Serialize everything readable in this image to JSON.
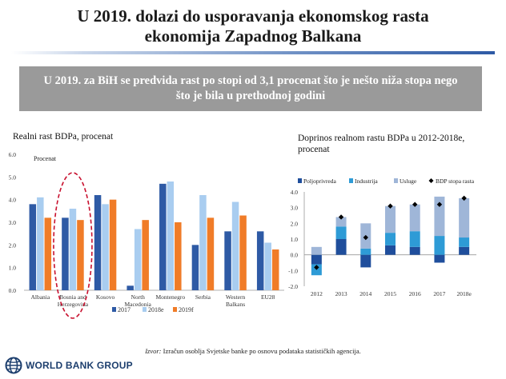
{
  "slide": {
    "title_line1": "U 2019. dolazi do usporavanja ekonomskog rasta",
    "title_line2": "ekonomija Zapadnog Balkana",
    "banner_line1": "U 2019. za BiH se predvida rast po stopi od 3,1 procenat što je nešto niža stopa nego",
    "banner_line2": "što je bila u prethodnoj godini",
    "source_label": "Izvor:",
    "source_text": " Izračun osoblja Svjetske banke po osnovu podataka statističkih agencija.",
    "logo_text": "WORLD BANK GROUP",
    "colors": {
      "accent_blue": "#2e5aa5",
      "banner_gray": "#9a9a9a",
      "highlight_red": "#c8102e"
    }
  },
  "chart_data": [
    {
      "type": "bar",
      "title": "Realni rast BDPa, procenat",
      "ylabel": "Procenat",
      "ylim": [
        0,
        6
      ],
      "yticks": [
        "0.0",
        "1.0",
        "2.0",
        "3.0",
        "4.0",
        "5.0",
        "6.0"
      ],
      "categories": [
        [
          "Albania"
        ],
        [
          "Bosnia and",
          "Herzegovina"
        ],
        [
          "Kosovo"
        ],
        [
          "North",
          "Macedonia"
        ],
        [
          "Montenegro"
        ],
        [
          "Serbia"
        ],
        [
          "Western",
          "Balkans"
        ],
        [
          "EU28"
        ]
      ],
      "series": [
        {
          "name": "2017",
          "color": "#2e5aa5",
          "values": [
            3.8,
            3.2,
            4.2,
            0.2,
            4.7,
            2.0,
            2.6,
            2.6
          ]
        },
        {
          "name": "2018e",
          "color": "#a9cdf0",
          "values": [
            4.1,
            3.6,
            3.8,
            2.7,
            4.8,
            4.2,
            3.9,
            2.1
          ]
        },
        {
          "name": "2019f",
          "color": "#f07c28",
          "values": [
            3.2,
            3.1,
            4.0,
            3.1,
            3.0,
            3.2,
            3.3,
            1.8
          ]
        }
      ],
      "highlight_category": 1,
      "grid": false,
      "legend_position": "bottom"
    },
    {
      "type": "bar",
      "stacked": true,
      "title": "Doprinos realnom rastu BDPa u 2012-2018e, procenat",
      "ylim": [
        -2,
        4
      ],
      "yticks": [
        "-2.0",
        "-1.0",
        "0.0",
        "1.0",
        "2.0",
        "3.0",
        "4.0"
      ],
      "categories": [
        "2012",
        "2013",
        "2014",
        "2015",
        "2016",
        "2017",
        "2018e"
      ],
      "series": [
        {
          "name": "Poljoprivreda",
          "color": "#1f4e9c",
          "values": [
            -0.6,
            1.0,
            -0.8,
            0.6,
            0.5,
            -0.5,
            0.5
          ]
        },
        {
          "name": "Industrija",
          "color": "#2e9bd6",
          "values": [
            -0.7,
            0.8,
            0.4,
            0.8,
            1.0,
            1.2,
            0.6
          ]
        },
        {
          "name": "Usluge",
          "color": "#9fb6d8",
          "values": [
            0.5,
            0.6,
            1.6,
            1.7,
            1.7,
            2.5,
            2.5
          ]
        }
      ],
      "line_series": {
        "name": "BDP stopa rasta",
        "color": "#000000",
        "values": [
          -0.8,
          2.4,
          1.1,
          3.1,
          3.2,
          3.2,
          3.6
        ]
      },
      "grid": false,
      "legend_position": "top"
    }
  ]
}
